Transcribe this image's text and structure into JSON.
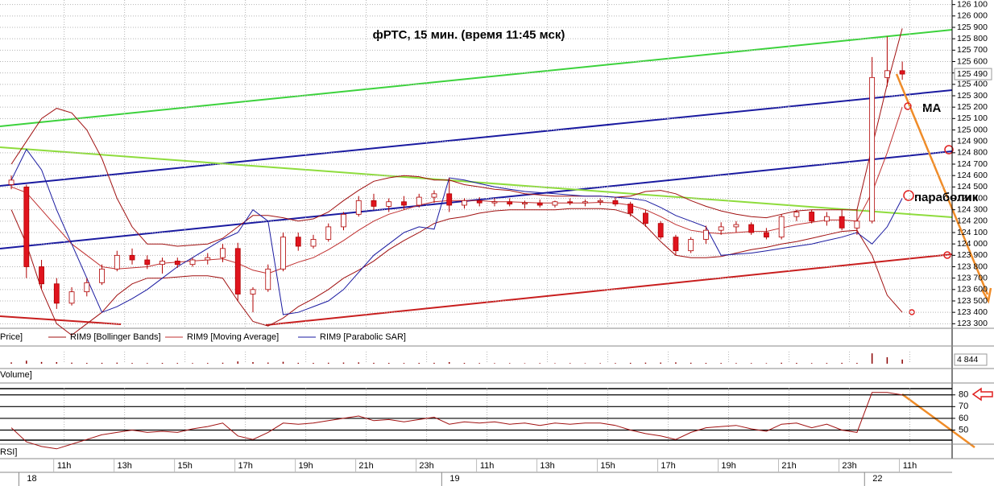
{
  "chart_data": [
    {
      "type": "candlestick",
      "title": "фРТС,  15 мин.  (время 11:45 мск)",
      "name": "Price]",
      "up_color": "#ffffff",
      "down_color": "#e0141e",
      "outline": "#b00000",
      "xlim": [
        -0.75,
        62.3
      ],
      "ylim": [
        123260,
        126140
      ],
      "grid": true,
      "yticks": [
        {
          "value": 126100,
          "label": "126 100"
        },
        {
          "value": 126000,
          "label": "126 000"
        },
        {
          "value": 125900,
          "label": "125 900"
        },
        {
          "value": 125800,
          "label": "125 800"
        },
        {
          "value": 125700,
          "label": "125 700"
        },
        {
          "value": 125600,
          "label": "125 600"
        },
        {
          "value": 125500,
          "label": "125 500"
        },
        {
          "value": 125400,
          "label": "125 400"
        },
        {
          "value": 125300,
          "label": "125 300"
        },
        {
          "value": 125200,
          "label": "125 200"
        },
        {
          "value": 125100,
          "label": "125 100"
        },
        {
          "value": 125000,
          "label": "125 000"
        },
        {
          "value": 124900,
          "label": "124 900"
        },
        {
          "value": 124800,
          "label": "124 800"
        },
        {
          "value": 124700,
          "label": "124 700"
        },
        {
          "value": 124600,
          "label": "124 600"
        },
        {
          "value": 124500,
          "label": "124 500"
        },
        {
          "value": 124400,
          "label": "124 400"
        },
        {
          "value": 124300,
          "label": "124 300"
        },
        {
          "value": 124200,
          "label": "124 200"
        },
        {
          "value": 124100,
          "label": "124 100"
        },
        {
          "value": 124000,
          "label": "124 000"
        },
        {
          "value": 123900,
          "label": "123 900"
        },
        {
          "value": 123800,
          "label": "123 800"
        },
        {
          "value": 123700,
          "label": "123 700"
        },
        {
          "value": 123600,
          "label": "123 600"
        },
        {
          "value": 123500,
          "label": "123 500"
        },
        {
          "value": 123400,
          "label": "123 400"
        },
        {
          "value": 123300,
          "label": "123 300"
        }
      ],
      "open": [
        124520,
        124500,
        123800,
        123650,
        123480,
        123580,
        123660,
        123780,
        123900,
        123860,
        123820,
        123850,
        123820,
        123860,
        123880,
        123960,
        123560,
        123600,
        123780,
        124060,
        123980,
        124040,
        124150,
        124260,
        124380,
        124330,
        124370,
        124340,
        124410,
        124440,
        124340,
        124380,
        124360,
        124370,
        124350,
        124360,
        124340,
        124370,
        124360,
        124370,
        124380,
        124350,
        124270,
        124180,
        124060,
        123940,
        124040,
        124120,
        124150,
        124170,
        124100,
        124060,
        124240,
        124280,
        124200,
        124240,
        124140,
        124200,
        125460,
        125520
      ],
      "high": [
        124600,
        124520,
        123860,
        123700,
        123620,
        123700,
        123820,
        123940,
        123960,
        123900,
        123880,
        123880,
        123880,
        123920,
        124000,
        124010,
        123620,
        123820,
        124100,
        124100,
        124080,
        124180,
        124280,
        124420,
        124440,
        124400,
        124420,
        124440,
        124470,
        124580,
        124400,
        124410,
        124400,
        124400,
        124380,
        124390,
        124380,
        124400,
        124390,
        124400,
        124410,
        124370,
        124300,
        124200,
        124080,
        124060,
        124160,
        124190,
        124200,
        124190,
        124140,
        124260,
        124300,
        124300,
        124280,
        124300,
        124300,
        125640,
        125820,
        125600
      ],
      "low": [
        124480,
        123700,
        123600,
        123430,
        123460,
        123540,
        123640,
        123760,
        123820,
        123780,
        123740,
        123790,
        123800,
        123820,
        123840,
        123500,
        123400,
        123580,
        123760,
        123940,
        123960,
        124020,
        124120,
        124240,
        124300,
        124280,
        124300,
        124320,
        124360,
        124280,
        124310,
        124330,
        124330,
        124330,
        124310,
        124320,
        124320,
        124340,
        124330,
        124340,
        124330,
        124240,
        124150,
        124040,
        123900,
        123920,
        124000,
        124080,
        124100,
        124080,
        124040,
        124040,
        124200,
        124180,
        124160,
        124120,
        124080,
        124180,
        125380,
        125440
      ],
      "close": [
        124560,
        123800,
        123650,
        123480,
        123580,
        123660,
        123780,
        123900,
        123860,
        123820,
        123850,
        123820,
        123860,
        123880,
        123960,
        123560,
        123600,
        123780,
        124060,
        123980,
        124040,
        124150,
        124260,
        124380,
        124330,
        124370,
        124340,
        124410,
        124440,
        124340,
        124380,
        124360,
        124370,
        124350,
        124360,
        124340,
        124370,
        124360,
        124370,
        124380,
        124350,
        124270,
        124180,
        124060,
        123940,
        124040,
        124120,
        124150,
        124170,
        124100,
        124060,
        124240,
        124280,
        124200,
        124240,
        124140,
        124200,
        125460,
        125520,
        125490
      ],
      "last_value": 125490,
      "last_label": "125 490",
      "series": [
        {
          "name": "RIM9 [Bollinger Bands]",
          "color": "#a01010",
          "upper": [
            124700,
            124900,
            125100,
            125190,
            125150,
            125000,
            124750,
            124400,
            124150,
            124000,
            124000,
            123980,
            123990,
            124000,
            124050,
            124150,
            124250,
            124250,
            124230,
            124200,
            124220,
            124280,
            124380,
            124470,
            124550,
            124580,
            124600,
            124590,
            124560,
            124560,
            124520,
            124500,
            124480,
            124470,
            124440,
            124430,
            124420,
            124420,
            124420,
            124420,
            124410,
            124420,
            124460,
            124470,
            124440,
            124380,
            124330,
            124290,
            124260,
            124240,
            124230,
            124260,
            124290,
            124300,
            124300,
            124300,
            124300,
            124850,
            125400,
            125890
          ],
          "lower": [
            124300,
            124000,
            123600,
            123300,
            123200,
            123300,
            123400,
            123550,
            123650,
            123700,
            123700,
            123710,
            123720,
            123720,
            123700,
            123500,
            123320,
            123280,
            123350,
            123450,
            123520,
            123600,
            123700,
            123770,
            123850,
            123950,
            124030,
            124100,
            124180,
            124220,
            124240,
            124270,
            124290,
            124300,
            124300,
            124300,
            124300,
            124310,
            124310,
            124310,
            124300,
            124260,
            124160,
            124020,
            123900,
            123880,
            123880,
            123890,
            123920,
            123950,
            123970,
            124000,
            124020,
            124050,
            124080,
            124110,
            124120,
            123900,
            123550,
            123400
          ]
        },
        {
          "name": "RIM9 [Moving Average]",
          "color": "#c03030",
          "values": [
            124500,
            124450,
            124300,
            124150,
            124000,
            123900,
            123800,
            123780,
            123790,
            123800,
            123830,
            123840,
            123850,
            123860,
            123870,
            123830,
            123770,
            123740,
            123790,
            123840,
            123880,
            123950,
            124030,
            124120,
            124200,
            124260,
            124300,
            124340,
            124370,
            124380,
            124380,
            124380,
            124370,
            124370,
            124365,
            124360,
            124360,
            124360,
            124360,
            124365,
            124360,
            124340,
            124300,
            124240,
            124170,
            124120,
            124100,
            124090,
            124100,
            124110,
            124110,
            124140,
            124170,
            124190,
            124210,
            124210,
            124200,
            124450,
            124800,
            125200
          ]
        },
        {
          "name": "RIM9 [Parabolic SAR]",
          "color": "#1a1aa0",
          "values": [
            124560,
            124830,
            124650,
            124300,
            124000,
            123700,
            123400,
            123450,
            123520,
            123600,
            123700,
            123800,
            123880,
            123960,
            124040,
            124100,
            124300,
            124200,
            123380,
            123400,
            123450,
            123500,
            123600,
            123750,
            123900,
            124000,
            124100,
            124150,
            124130,
            124580,
            124560,
            124530,
            124500,
            124480,
            124460,
            124450,
            124440,
            124430,
            124420,
            124420,
            124410,
            124400,
            124380,
            124320,
            124250,
            124200,
            124150,
            123900,
            123910,
            123920,
            123940,
            123960,
            123980,
            124000,
            124030,
            124060,
            124100,
            124000,
            124150,
            124400
          ]
        }
      ],
      "annotations": [
        "MA",
        "параболик"
      ]
    },
    {
      "type": "bar",
      "name": "Volume]",
      "color": "#8b0000",
      "xlim": [
        -0.75,
        62.3
      ],
      "ylim": [
        0,
        14000
      ],
      "values": [
        1500,
        3500,
        2000,
        1800,
        1200,
        900,
        1000,
        1200,
        800,
        700,
        900,
        800,
        700,
        800,
        1100,
        2600,
        1800,
        1300,
        2200,
        1000,
        900,
        1100,
        1300,
        1500,
        1000,
        900,
        800,
        900,
        1000,
        1800,
        900,
        700,
        600,
        600,
        500,
        600,
        500,
        600,
        500,
        600,
        700,
        1000,
        1200,
        1300,
        1500,
        1100,
        900,
        800,
        700,
        700,
        600,
        1100,
        900,
        700,
        800,
        1000,
        900,
        12000,
        7500,
        4844
      ],
      "last_label": "4 844"
    },
    {
      "type": "line",
      "name": "RSI]",
      "color": "#a01010",
      "xlim": [
        -0.75,
        62.3
      ],
      "ylim": [
        38,
        86
      ],
      "yticks": [
        50,
        60,
        70,
        80
      ],
      "values": [
        52,
        40,
        36,
        34,
        38,
        42,
        46,
        48,
        50,
        48,
        49,
        48,
        51,
        53,
        56,
        45,
        42,
        48,
        56,
        55,
        56,
        58,
        60,
        62,
        58,
        59,
        57,
        59,
        61,
        55,
        57,
        56,
        57,
        55,
        56,
        54,
        56,
        55,
        56,
        56,
        54,
        50,
        47,
        45,
        42,
        48,
        52,
        53,
        54,
        51,
        49,
        55,
        56,
        52,
        55,
        50,
        48,
        82,
        82,
        80
      ],
      "xticks": [
        {
          "value": 3.5,
          "label": "11h"
        },
        {
          "value": 7.5,
          "label": "13h"
        },
        {
          "value": 11.5,
          "label": "15h"
        },
        {
          "value": 15.5,
          "label": "17h"
        },
        {
          "value": 19.5,
          "label": "19h"
        },
        {
          "value": 23.5,
          "label": "21h"
        },
        {
          "value": 27.5,
          "label": "23h"
        },
        {
          "value": 31.5,
          "label": "11h"
        },
        {
          "value": 35.5,
          "label": "13h"
        },
        {
          "value": 39.5,
          "label": "15h"
        },
        {
          "value": 43.5,
          "label": "17h"
        },
        {
          "value": 47.5,
          "label": "19h"
        },
        {
          "value": 51.5,
          "label": "21h"
        },
        {
          "value": 55.5,
          "label": "23h"
        },
        {
          "value": 59.5,
          "label": "11h"
        }
      ],
      "date_ticks": [
        {
          "value": 0.5,
          "label": "18"
        },
        {
          "value": 28.5,
          "label": "19"
        },
        {
          "value": 56.5,
          "label": "22"
        }
      ]
    }
  ]
}
